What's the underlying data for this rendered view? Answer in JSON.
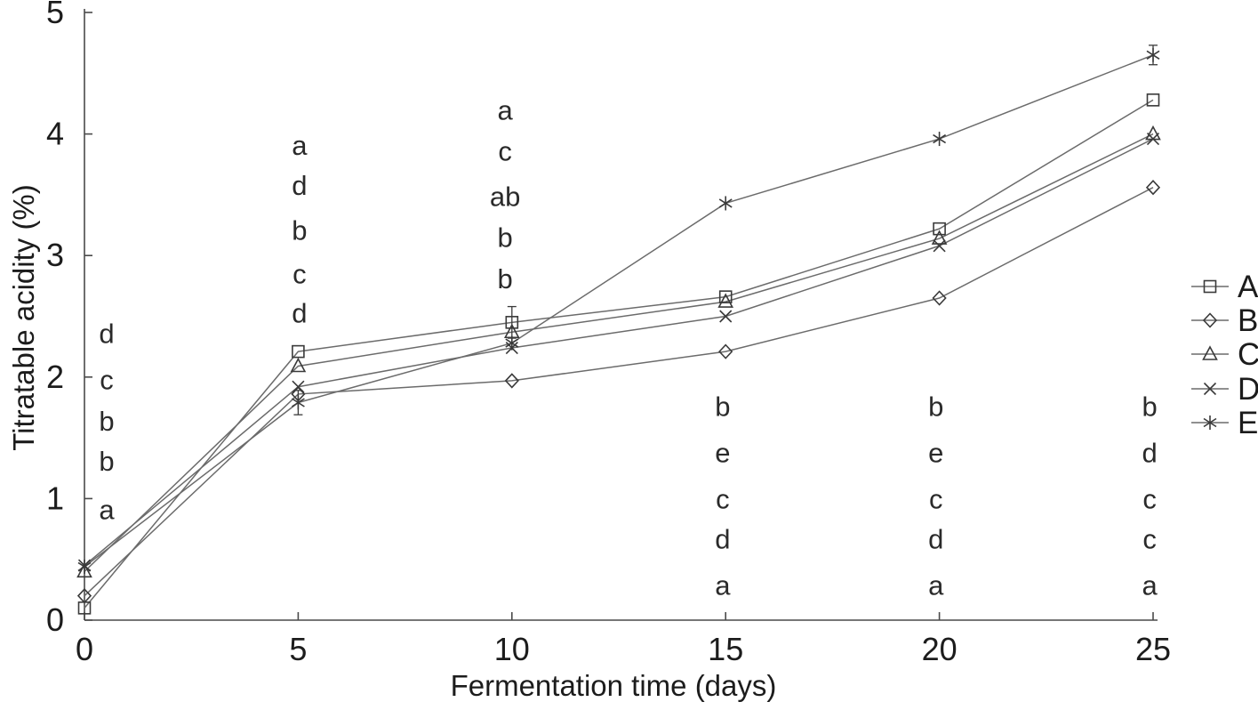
{
  "figure": {
    "background": "#ffffff",
    "text_color": "#1c1c1c",
    "line_color": "#6b6b6b",
    "marker_color": "#3a3a3a",
    "annotation_color": "#2a2a2a"
  },
  "chart_data": {
    "type": "line",
    "title": "",
    "xlabel": "Fermentation time (days)",
    "ylabel": "Titratable acidity (%)",
    "x": [
      0,
      5,
      10,
      15,
      20,
      25
    ],
    "xlim": [
      0,
      25
    ],
    "ylim": [
      0,
      5
    ],
    "xticks": [
      "0",
      "5",
      "10",
      "15",
      "20",
      "25"
    ],
    "yticks": [
      "0",
      "1",
      "2",
      "3",
      "4",
      "5"
    ],
    "grid": false,
    "legend_position": "right-outside",
    "series": [
      {
        "name": "A",
        "marker": "square",
        "values": [
          0.1,
          2.21,
          2.45,
          2.66,
          3.22,
          4.28
        ],
        "error_bars": [
          {
            "index": 2,
            "value": 0.13
          }
        ]
      },
      {
        "name": "B",
        "marker": "diamond",
        "values": [
          0.2,
          1.86,
          1.97,
          2.21,
          2.65,
          3.56
        ],
        "error_bars": []
      },
      {
        "name": "C",
        "marker": "triangle",
        "values": [
          0.4,
          2.09,
          2.37,
          2.62,
          3.14,
          4.0
        ],
        "error_bars": []
      },
      {
        "name": "D",
        "marker": "x",
        "values": [
          0.45,
          1.92,
          2.24,
          2.5,
          3.08,
          3.96
        ],
        "error_bars": []
      },
      {
        "name": "E",
        "marker": "asterisk",
        "values": [
          0.44,
          1.79,
          2.28,
          3.43,
          3.96,
          4.65
        ],
        "error_bars": [
          {
            "index": 1,
            "value": 0.1
          },
          {
            "index": 5,
            "value": 0.08
          }
        ]
      }
    ],
    "annotations": [
      {
        "x": 0.52,
        "letters": [
          {
            "text": "d",
            "y": 2.36
          },
          {
            "text": "c",
            "y": 1.98
          },
          {
            "text": "b",
            "y": 1.64
          },
          {
            "text": "b",
            "y": 1.31
          },
          {
            "text": "a",
            "y": 0.91
          }
        ]
      },
      {
        "x": 5.03,
        "letters": [
          {
            "text": "a",
            "y": 3.91
          },
          {
            "text": "d",
            "y": 3.58
          },
          {
            "text": "b",
            "y": 3.21
          },
          {
            "text": "c",
            "y": 2.85
          },
          {
            "text": "d",
            "y": 2.53
          }
        ]
      },
      {
        "x": 9.84,
        "letters": [
          {
            "text": "a",
            "y": 4.2
          },
          {
            "text": "c",
            "y": 3.86
          },
          {
            "text": "ab",
            "y": 3.49
          },
          {
            "text": "b",
            "y": 3.15
          },
          {
            "text": "b",
            "y": 2.81
          }
        ]
      },
      {
        "x": 14.93,
        "letters": [
          {
            "text": "b",
            "y": 1.76
          },
          {
            "text": "e",
            "y": 1.38
          },
          {
            "text": "c",
            "y": 1.0
          },
          {
            "text": "d",
            "y": 0.67
          },
          {
            "text": "a",
            "y": 0.29
          }
        ]
      },
      {
        "x": 19.92,
        "letters": [
          {
            "text": "b",
            "y": 1.76
          },
          {
            "text": "e",
            "y": 1.38
          },
          {
            "text": "c",
            "y": 1.0
          },
          {
            "text": "d",
            "y": 0.67
          },
          {
            "text": "a",
            "y": 0.29
          }
        ]
      },
      {
        "x": 24.92,
        "letters": [
          {
            "text": "b",
            "y": 1.76
          },
          {
            "text": "d",
            "y": 1.38
          },
          {
            "text": "c",
            "y": 1.0
          },
          {
            "text": "c",
            "y": 0.67
          },
          {
            "text": "a",
            "y": 0.29
          }
        ]
      }
    ]
  }
}
